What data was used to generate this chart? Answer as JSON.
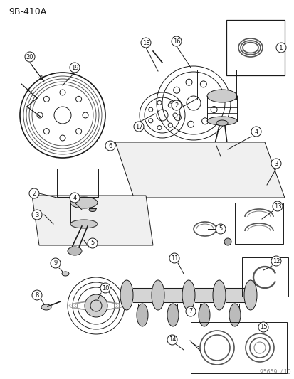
{
  "title": "9B-410A",
  "background_color": "#ffffff",
  "line_color": "#1a1a1a",
  "figsize": [
    4.14,
    5.33
  ],
  "dpi": 100,
  "watermark": "95659  410"
}
